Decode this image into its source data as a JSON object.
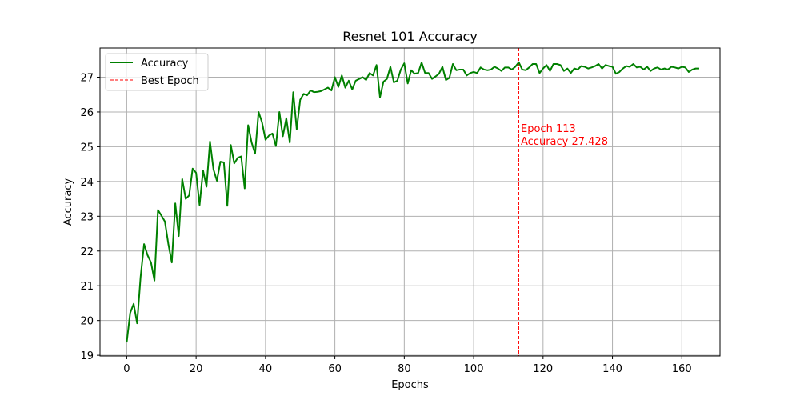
{
  "chart_data": {
    "type": "line",
    "title": "Resnet 101 Accuracy",
    "xlabel": "Epochs",
    "ylabel": "Accuracy",
    "xlim": [
      -7.7,
      171
    ],
    "ylim": [
      18.98,
      27.84
    ],
    "xticks": [
      0,
      20,
      40,
      60,
      80,
      100,
      120,
      140,
      160
    ],
    "yticks": [
      19,
      20,
      21,
      22,
      23,
      24,
      25,
      26,
      27
    ],
    "grid": true,
    "legend_position": "top-left",
    "series": [
      {
        "name": "Accuracy",
        "color": "#008000",
        "x_start": 0,
        "x_step": 1,
        "values": [
          19.37,
          20.22,
          20.48,
          19.92,
          21.25,
          22.2,
          21.88,
          21.67,
          21.15,
          23.18,
          23.02,
          22.85,
          22.2,
          21.67,
          23.37,
          22.43,
          24.07,
          23.5,
          23.6,
          24.37,
          24.25,
          23.32,
          24.32,
          23.85,
          25.15,
          24.35,
          24.02,
          24.57,
          24.55,
          23.3,
          25.05,
          24.52,
          24.68,
          24.72,
          23.8,
          25.62,
          25.12,
          24.8,
          26.0,
          25.7,
          25.2,
          25.32,
          25.38,
          25.02,
          26.0,
          25.3,
          25.82,
          25.12,
          26.57,
          25.5,
          26.35,
          26.52,
          26.48,
          26.62,
          26.57,
          26.58,
          26.6,
          26.65,
          26.7,
          26.62,
          27.0,
          26.72,
          27.05,
          26.7,
          26.9,
          26.65,
          26.9,
          26.95,
          27.0,
          26.92,
          27.12,
          27.05,
          27.35,
          26.42,
          26.87,
          26.95,
          27.3,
          26.85,
          26.9,
          27.22,
          27.4,
          26.82,
          27.2,
          27.1,
          27.12,
          27.42,
          27.12,
          27.12,
          26.95,
          27.02,
          27.1,
          27.3,
          26.92,
          26.98,
          27.38,
          27.2,
          27.22,
          27.22,
          27.05,
          27.12,
          27.15,
          27.12,
          27.28,
          27.22,
          27.2,
          27.22,
          27.3,
          27.25,
          27.18,
          27.28,
          27.28,
          27.22,
          27.3,
          27.43,
          27.22,
          27.2,
          27.28,
          27.38,
          27.38,
          27.12,
          27.25,
          27.35,
          27.18,
          27.38,
          27.38,
          27.35,
          27.18,
          27.25,
          27.12,
          27.25,
          27.22,
          27.32,
          27.3,
          27.25,
          27.28,
          27.32,
          27.38,
          27.25,
          27.35,
          27.32,
          27.3,
          27.1,
          27.15,
          27.25,
          27.32,
          27.3,
          27.38,
          27.28,
          27.3,
          27.22,
          27.3,
          27.18,
          27.25,
          27.28,
          27.22,
          27.25,
          27.22,
          27.3,
          27.28,
          27.25,
          27.3,
          27.28,
          27.15,
          27.22,
          27.25,
          27.25
        ]
      }
    ],
    "reference_line": {
      "name": "Best Epoch",
      "x": 113,
      "color": "#ff0000",
      "style": "dashed"
    },
    "annotation": {
      "line1": "Epoch 113",
      "line2": "Accuracy 27.428",
      "color": "#ff0000"
    }
  }
}
